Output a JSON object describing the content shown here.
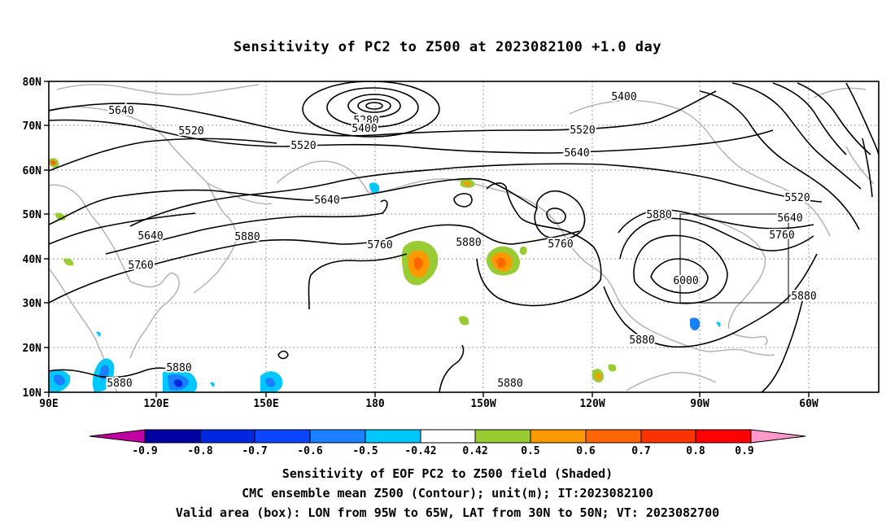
{
  "title": "Sensitivity of PC2 to Z500 at 2023082100 +1.0 day",
  "lat_labels": [
    "80N",
    "70N",
    "60N",
    "50N",
    "40N",
    "30N",
    "20N",
    "10N"
  ],
  "lon_labels": [
    "90E",
    "120E",
    "150E",
    "180",
    "150W",
    "120W",
    "90W",
    "60W"
  ],
  "contour_labels": [
    "5640",
    "5520",
    "5520",
    "5640",
    "5640",
    "5760",
    "5880",
    "5280",
    "5400",
    "5760",
    "5880",
    "5760",
    "5400",
    "5520",
    "5640",
    "5520",
    "5640",
    "5760",
    "5880",
    "6000",
    "5880",
    "5880",
    "5880",
    "5880",
    "5880"
  ],
  "colorbar": {
    "labels": [
      "-0.9",
      "-0.8",
      "-0.7",
      "-0.6",
      "-0.5",
      "-0.42",
      "0.42",
      "0.5",
      "0.6",
      "0.7",
      "0.8",
      "0.9"
    ],
    "colors": [
      "#c000a0",
      "#0000a0",
      "#0028e0",
      "#0a46ff",
      "#1a80ff",
      "#00c8ff",
      "#ffffff",
      "#99cc33",
      "#ff9900",
      "#ff6600",
      "#ff3300",
      "#ff0000",
      "#ff99cc"
    ]
  },
  "captions": [
    "Sensitivity of EOF PC2 to Z500 field (Shaded)",
    "CMC ensemble mean Z500 (Contour); unit(m); IT:2023082100",
    "Valid area (box): LON from 95W to 65W, LAT from 30N to 50N; VT: 2023082700"
  ],
  "valid_box": {
    "lon_range": [
      "95W",
      "65W"
    ],
    "lat_range": [
      "30N",
      "50N"
    ]
  }
}
